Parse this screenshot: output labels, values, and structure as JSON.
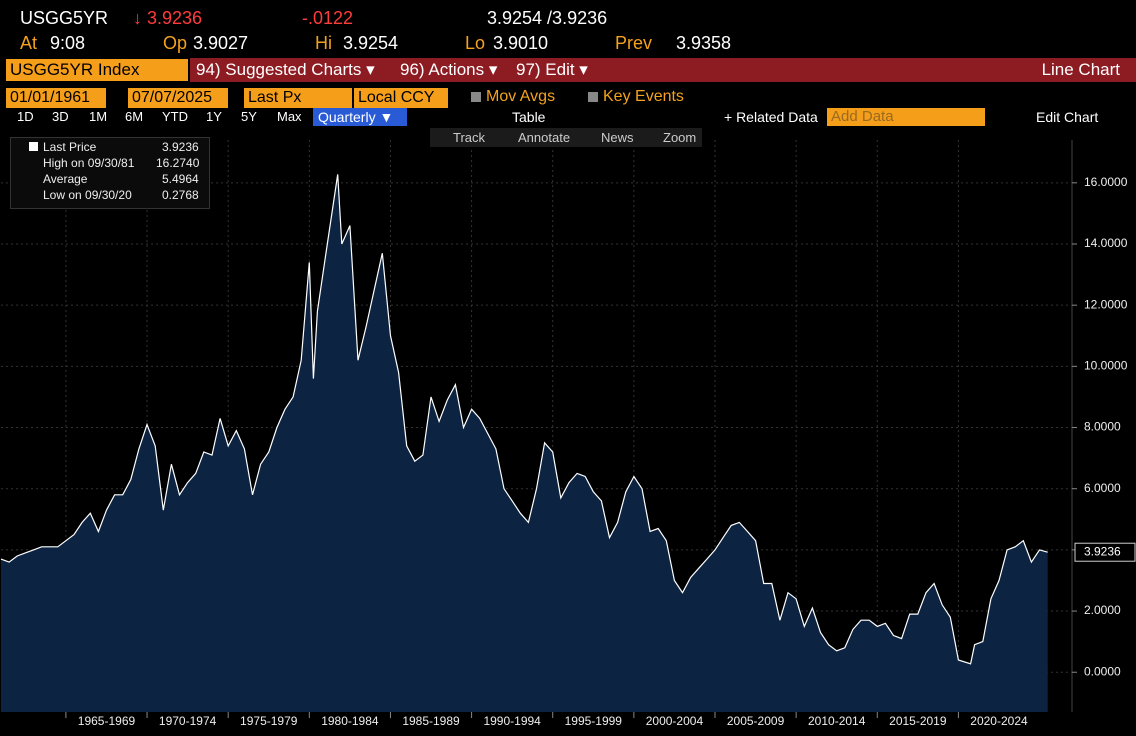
{
  "header": {
    "ticker": "USGG5YR",
    "last": "↓ 3.9236",
    "change": "-.0122",
    "bid_ask": "3.9254 /3.9236",
    "fields": [
      {
        "label": "At",
        "value": "9:08"
      },
      {
        "label": "Op",
        "value": "3.9027"
      },
      {
        "label": "Hi",
        "value": "3.9254"
      },
      {
        "label": "Lo",
        "value": "3.9010"
      },
      {
        "label": "Prev",
        "value": "3.9358"
      }
    ]
  },
  "menu": {
    "security": "USGG5YR Index",
    "items": [
      "94) Suggested Charts ▾",
      "96) Actions ▾",
      "97) Edit ▾"
    ],
    "chart_kind": "Line Chart"
  },
  "settings": {
    "start": "01/01/1961",
    "end": "07/07/2025",
    "field": "Last Px",
    "currency": "Local CCY",
    "toggles": [
      "Mov Avgs",
      "Key Events"
    ]
  },
  "periods": {
    "buttons": [
      "1D",
      "3D",
      "1M",
      "6M",
      "YTD",
      "1Y",
      "5Y",
      "Max"
    ],
    "frequency": "Quarterly ▼",
    "table": "Table",
    "related": "+ Related Data",
    "add": "Add Data",
    "edit": "Edit Chart"
  },
  "tools": [
    "Track",
    "Annotate",
    "News",
    "Zoom"
  ],
  "legend": {
    "last": "3.9236",
    "rows": [
      {
        "label": "High on 09/30/81",
        "value": "16.2740"
      },
      {
        "label": "Average",
        "value": "5.4964"
      },
      {
        "label": "Low on 09/30/20",
        "value": "0.2768"
      }
    ]
  },
  "chart_data": {
    "type": "area",
    "x": [
      1961,
      1961.5,
      1962,
      1962.5,
      1963,
      1963.5,
      1964,
      1964.5,
      1965,
      1965.5,
      1966,
      1966.5,
      1967,
      1967.5,
      1968,
      1968.5,
      1969,
      1969.5,
      1970,
      1970.5,
      1971,
      1971.5,
      1972,
      1972.5,
      1973,
      1973.5,
      1974,
      1974.5,
      1975,
      1975.5,
      1976,
      1976.5,
      1977,
      1977.5,
      1978,
      1978.5,
      1979,
      1979.5,
      1980,
      1980.25,
      1980.5,
      1981,
      1981.75,
      1982,
      1982.5,
      1983,
      1983.5,
      1984,
      1984.5,
      1985,
      1985.5,
      1986,
      1986.5,
      1987,
      1987.5,
      1988,
      1988.5,
      1989,
      1989.5,
      1990,
      1990.5,
      1991,
      1991.5,
      1992,
      1992.5,
      1993,
      1993.5,
      1994,
      1994.5,
      1995,
      1995.5,
      1996,
      1996.5,
      1997,
      1997.5,
      1998,
      1998.5,
      1999,
      1999.5,
      2000,
      2000.5,
      2001,
      2001.5,
      2002,
      2002.5,
      2003,
      2003.5,
      2004,
      2004.5,
      2005,
      2005.5,
      2006,
      2006.5,
      2007,
      2007.5,
      2008,
      2008.5,
      2009,
      2009.5,
      2010,
      2010.5,
      2011,
      2011.5,
      2012,
      2012.5,
      2013,
      2013.5,
      2014,
      2014.5,
      2015,
      2015.5,
      2016,
      2016.5,
      2017,
      2017.5,
      2018,
      2018.5,
      2019,
      2019.5,
      2020,
      2020.75,
      2021,
      2021.5,
      2022,
      2022.5,
      2023,
      2023.5,
      2024,
      2024.5,
      2025,
      2025.5
    ],
    "series": [
      {
        "name": "Last Price",
        "color": "#ffffff",
        "fill": "#0c2342",
        "values": [
          3.7,
          3.6,
          3.8,
          3.9,
          4.0,
          4.1,
          4.1,
          4.1,
          4.3,
          4.5,
          4.9,
          5.2,
          4.6,
          5.3,
          5.8,
          5.8,
          6.3,
          7.3,
          8.1,
          7.4,
          5.3,
          6.8,
          5.8,
          6.2,
          6.5,
          7.2,
          7.1,
          8.3,
          7.4,
          7.9,
          7.3,
          5.8,
          6.8,
          7.2,
          8.0,
          8.6,
          9.0,
          10.2,
          13.4,
          9.6,
          11.8,
          13.6,
          16.274,
          14.0,
          14.6,
          10.2,
          11.3,
          12.5,
          13.7,
          11.0,
          9.8,
          7.4,
          6.9,
          7.1,
          9.0,
          8.2,
          8.9,
          9.4,
          8.0,
          8.6,
          8.3,
          7.8,
          7.3,
          6.0,
          5.6,
          5.2,
          4.9,
          6.0,
          7.5,
          7.2,
          5.7,
          6.2,
          6.5,
          6.4,
          5.9,
          5.6,
          4.4,
          4.9,
          5.9,
          6.4,
          6.0,
          4.6,
          4.7,
          4.3,
          3.0,
          2.6,
          3.1,
          3.4,
          3.7,
          4.0,
          4.4,
          4.8,
          4.9,
          4.6,
          4.3,
          2.9,
          2.9,
          1.7,
          2.6,
          2.4,
          1.5,
          2.1,
          1.3,
          0.9,
          0.7,
          0.8,
          1.4,
          1.7,
          1.7,
          1.5,
          1.6,
          1.2,
          1.1,
          1.9,
          1.9,
          2.6,
          2.9,
          2.2,
          1.8,
          0.4,
          0.2768,
          0.9,
          1.0,
          2.4,
          3.0,
          4.0,
          4.1,
          4.3,
          3.6,
          4.0,
          3.9236
        ]
      }
    ],
    "last_label": "3.9236",
    "xlim": [
      1961,
      2027
    ],
    "xticks": [
      {
        "value": 1965,
        "label": "1965-1969"
      },
      {
        "value": 1970,
        "label": "1970-1974"
      },
      {
        "value": 1975,
        "label": "1975-1979"
      },
      {
        "value": 1980,
        "label": "1980-1984"
      },
      {
        "value": 1985,
        "label": "1985-1989"
      },
      {
        "value": 1990,
        "label": "1990-1994"
      },
      {
        "value": 1995,
        "label": "1995-1999"
      },
      {
        "value": 2000,
        "label": "2000-2004"
      },
      {
        "value": 2005,
        "label": "2005-2009"
      },
      {
        "value": 2010,
        "label": "2010-2014"
      },
      {
        "value": 2015,
        "label": "2015-2019"
      },
      {
        "value": 2020,
        "label": "2020-2024"
      }
    ],
    "ylim": [
      -1.3,
      17.4
    ],
    "yticks": [
      {
        "value": 0,
        "label": "0.0000"
      },
      {
        "value": 2,
        "label": "2.0000"
      },
      {
        "value": 4,
        "label": "4.0000"
      },
      {
        "value": 6,
        "label": "6.0000"
      },
      {
        "value": 8,
        "label": "8.0000"
      },
      {
        "value": 10,
        "label": "10.0000"
      },
      {
        "value": 12,
        "label": "12.0000"
      },
      {
        "value": 14,
        "label": "14.0000"
      },
      {
        "value": 16,
        "label": "16.0000"
      }
    ],
    "grid": true
  }
}
